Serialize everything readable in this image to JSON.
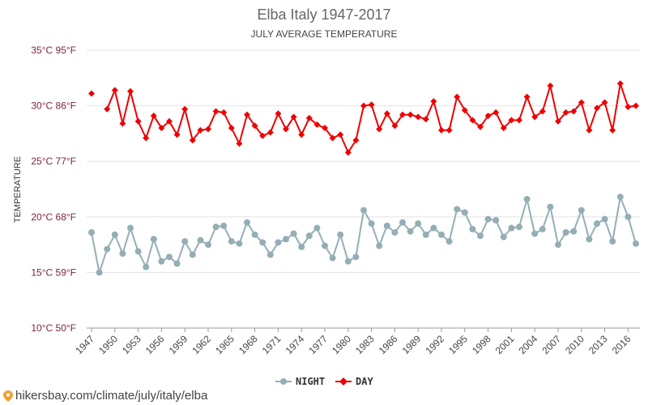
{
  "colors": {
    "night": "#95aeb5",
    "day": "#ee0000",
    "ytick": "#7a1f3a"
  },
  "footer": {
    "url": "hikersbay.com/climate/july/italy/elba",
    "icon": "location-pin-icon"
  },
  "chart_data": {
    "type": "line",
    "title": "Elba Italy 1947-2017",
    "subtitle": "JULY AVERAGE TEMPERATURE",
    "ylabel": "TEMPERATURE",
    "ylim": [
      10,
      35
    ],
    "yticks": [
      {
        "value": 35,
        "label": "35°C 95°F"
      },
      {
        "value": 30,
        "label": "30°C 86°F"
      },
      {
        "value": 25,
        "label": "25°C 77°F"
      },
      {
        "value": 20,
        "label": "20°C 68°F"
      },
      {
        "value": 15,
        "label": "15°C 59°F"
      },
      {
        "value": 10,
        "label": "10°C 50°F"
      }
    ],
    "xlim": [
      1947,
      2017
    ],
    "xticks": [
      1947,
      1950,
      1953,
      1956,
      1959,
      1962,
      1965,
      1968,
      1971,
      1974,
      1977,
      1980,
      1983,
      1986,
      1989,
      1992,
      1995,
      1998,
      2001,
      2004,
      2007,
      2010,
      2013,
      2016
    ],
    "grid": true,
    "legend": "bottom-center",
    "series": [
      {
        "name": "NIGHT",
        "color": "#95aeb5",
        "marker": "circle",
        "points": [
          [
            1947,
            18.6
          ],
          [
            1948,
            15.0
          ],
          [
            1949,
            17.1
          ],
          [
            1950,
            18.4
          ],
          [
            1951,
            16.7
          ],
          [
            1952,
            19.0
          ],
          [
            1953,
            16.9
          ],
          [
            1954,
            15.5
          ],
          [
            1955,
            18.0
          ],
          [
            1956,
            16.0
          ],
          [
            1957,
            16.4
          ],
          [
            1958,
            15.8
          ],
          [
            1959,
            17.8
          ],
          [
            1960,
            16.6
          ],
          [
            1961,
            17.9
          ],
          [
            1962,
            17.5
          ],
          [
            1963,
            19.1
          ],
          [
            1964,
            19.2
          ],
          [
            1965,
            17.8
          ],
          [
            1966,
            17.6
          ],
          [
            1967,
            19.5
          ],
          [
            1968,
            18.4
          ],
          [
            1969,
            17.7
          ],
          [
            1970,
            16.6
          ],
          [
            1971,
            17.7
          ],
          [
            1972,
            18.0
          ],
          [
            1973,
            18.5
          ],
          [
            1974,
            17.3
          ],
          [
            1975,
            18.3
          ],
          [
            1976,
            19.0
          ],
          [
            1977,
            17.4
          ],
          [
            1978,
            16.3
          ],
          [
            1979,
            18.4
          ],
          [
            1980,
            16.0
          ],
          [
            1981,
            16.4
          ],
          [
            1982,
            20.6
          ],
          [
            1983,
            19.4
          ],
          [
            1984,
            17.4
          ],
          [
            1985,
            19.2
          ],
          [
            1986,
            18.6
          ],
          [
            1987,
            19.5
          ],
          [
            1988,
            18.7
          ],
          [
            1989,
            19.4
          ],
          [
            1990,
            18.4
          ],
          [
            1991,
            19.0
          ],
          [
            1992,
            18.4
          ],
          [
            1993,
            17.8
          ],
          [
            1994,
            20.7
          ],
          [
            1995,
            20.4
          ],
          [
            1996,
            18.9
          ],
          [
            1997,
            18.3
          ],
          [
            1998,
            19.8
          ],
          [
            1999,
            19.7
          ],
          [
            2000,
            18.2
          ],
          [
            2001,
            19.0
          ],
          [
            2002,
            19.1
          ],
          [
            2003,
            21.6
          ],
          [
            2004,
            18.5
          ],
          [
            2005,
            18.9
          ],
          [
            2006,
            20.9
          ],
          [
            2007,
            17.5
          ],
          [
            2008,
            18.6
          ],
          [
            2009,
            18.7
          ],
          [
            2010,
            20.6
          ],
          [
            2011,
            18.0
          ],
          [
            2012,
            19.4
          ],
          [
            2013,
            19.8
          ],
          [
            2014,
            17.8
          ],
          [
            2015,
            21.8
          ],
          [
            2016,
            20.0
          ],
          [
            2017,
            17.6
          ]
        ]
      },
      {
        "name": "DAY",
        "color": "#ee0000",
        "marker": "diamond",
        "points": [
          [
            1947,
            31.1
          ],
          [
            1949,
            29.7
          ],
          [
            1950,
            31.4
          ],
          [
            1951,
            28.4
          ],
          [
            1952,
            31.3
          ],
          [
            1953,
            28.6
          ],
          [
            1954,
            27.1
          ],
          [
            1955,
            29.1
          ],
          [
            1956,
            28.0
          ],
          [
            1957,
            28.6
          ],
          [
            1958,
            27.4
          ],
          [
            1959,
            29.7
          ],
          [
            1960,
            26.9
          ],
          [
            1961,
            27.8
          ],
          [
            1962,
            27.9
          ],
          [
            1963,
            29.5
          ],
          [
            1964,
            29.4
          ],
          [
            1965,
            28.0
          ],
          [
            1966,
            26.6
          ],
          [
            1967,
            29.2
          ],
          [
            1968,
            28.2
          ],
          [
            1969,
            27.3
          ],
          [
            1970,
            27.6
          ],
          [
            1971,
            29.3
          ],
          [
            1972,
            27.9
          ],
          [
            1973,
            29.0
          ],
          [
            1974,
            27.4
          ],
          [
            1975,
            28.9
          ],
          [
            1976,
            28.3
          ],
          [
            1977,
            28.0
          ],
          [
            1978,
            27.1
          ],
          [
            1979,
            27.4
          ],
          [
            1980,
            25.8
          ],
          [
            1981,
            26.9
          ],
          [
            1982,
            30.0
          ],
          [
            1983,
            30.1
          ],
          [
            1984,
            27.9
          ],
          [
            1985,
            29.3
          ],
          [
            1986,
            28.2
          ],
          [
            1987,
            29.2
          ],
          [
            1988,
            29.2
          ],
          [
            1989,
            29.0
          ],
          [
            1990,
            28.8
          ],
          [
            1991,
            30.4
          ],
          [
            1992,
            27.8
          ],
          [
            1993,
            27.8
          ],
          [
            1994,
            30.8
          ],
          [
            1995,
            29.6
          ],
          [
            1996,
            28.7
          ],
          [
            1997,
            28.1
          ],
          [
            1998,
            29.1
          ],
          [
            1999,
            29.4
          ],
          [
            2000,
            28.0
          ],
          [
            2001,
            28.7
          ],
          [
            2002,
            28.7
          ],
          [
            2003,
            30.8
          ],
          [
            2004,
            29.0
          ],
          [
            2005,
            29.5
          ],
          [
            2006,
            31.8
          ],
          [
            2007,
            28.6
          ],
          [
            2008,
            29.4
          ],
          [
            2009,
            29.5
          ],
          [
            2010,
            30.3
          ],
          [
            2011,
            27.8
          ],
          [
            2012,
            29.8
          ],
          [
            2013,
            30.3
          ],
          [
            2014,
            27.8
          ],
          [
            2015,
            32.0
          ],
          [
            2016,
            29.9
          ],
          [
            2017,
            30.0
          ]
        ]
      }
    ]
  }
}
